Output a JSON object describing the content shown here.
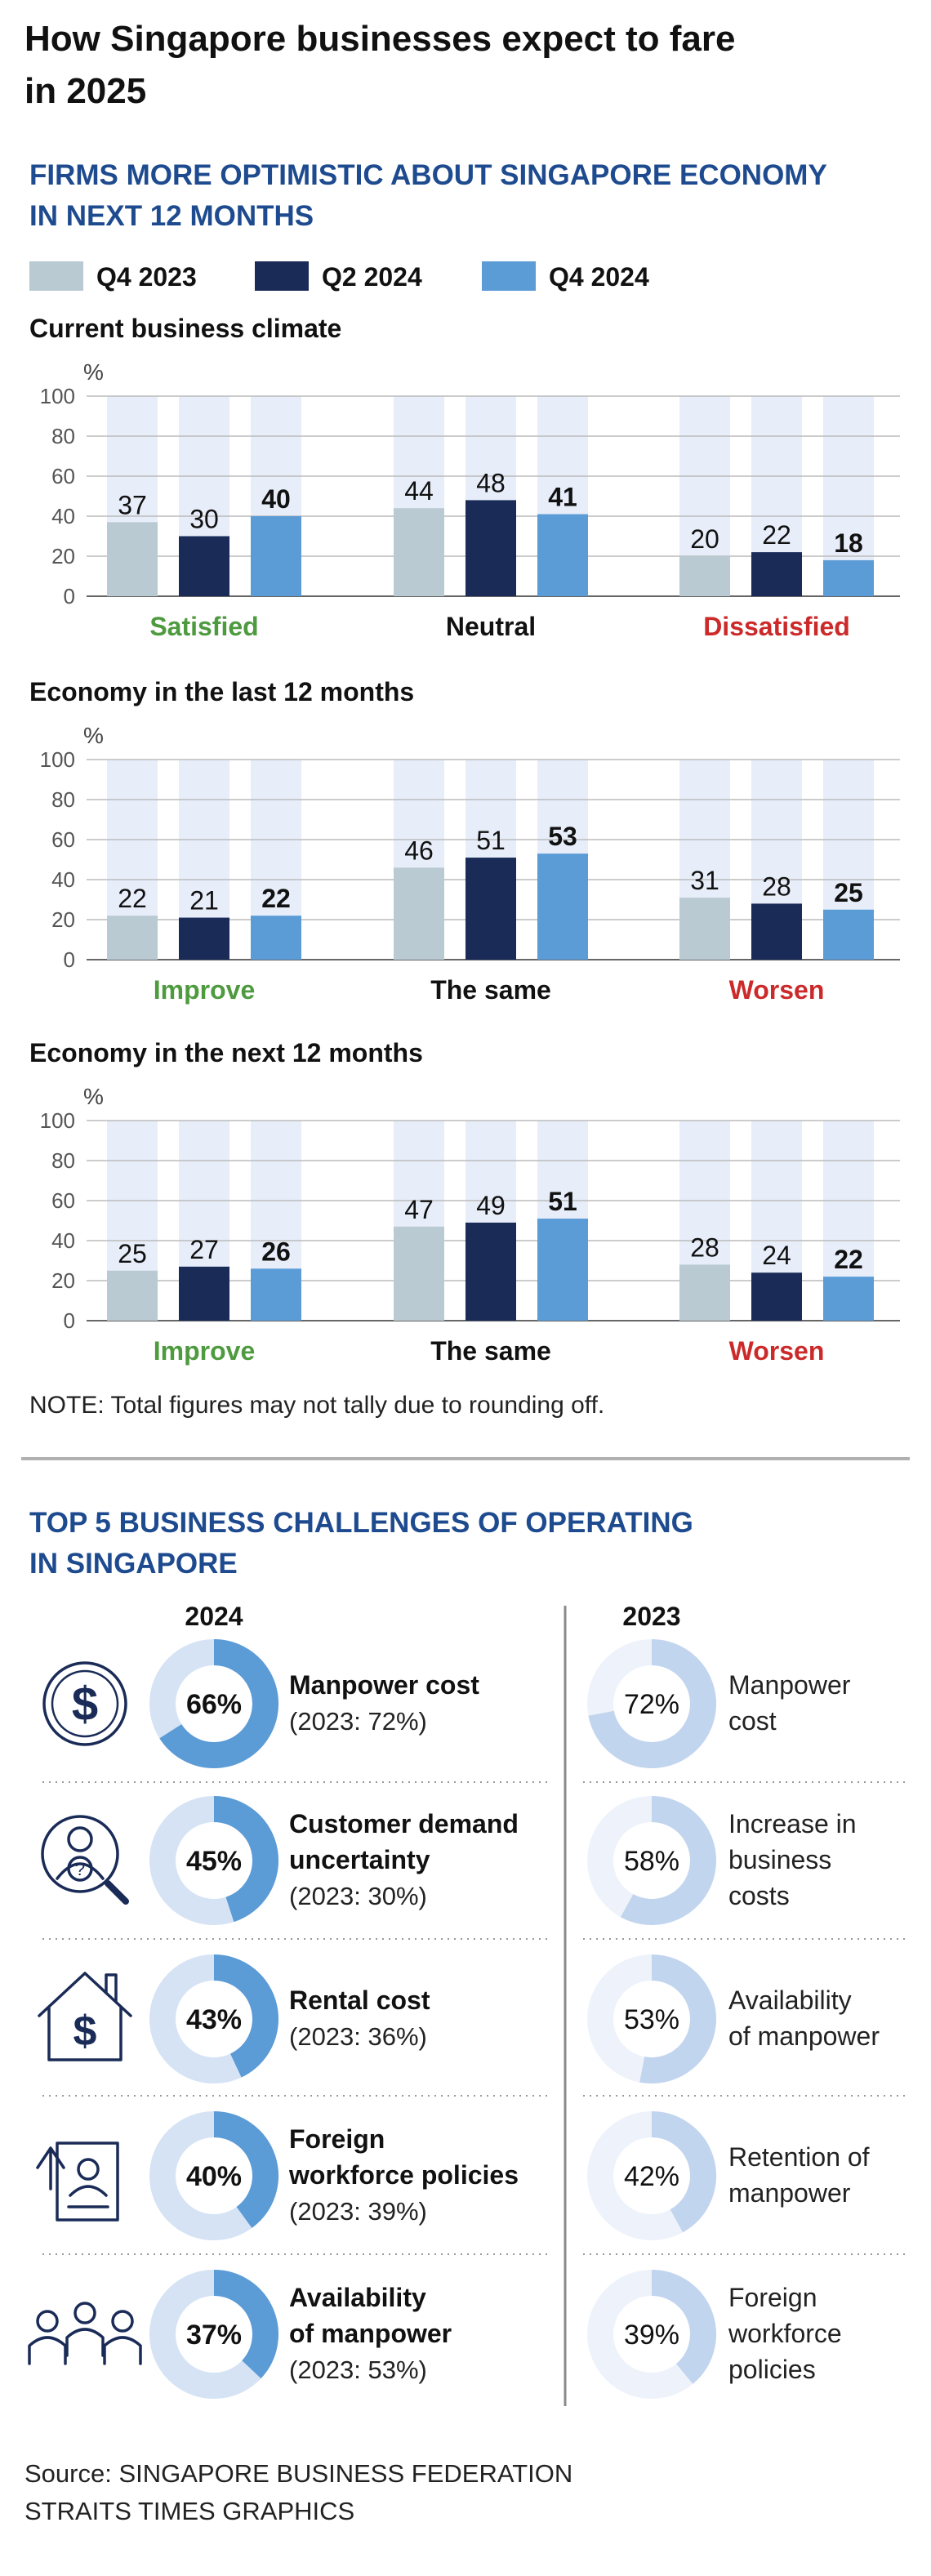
{
  "title": "How Singapore businesses expect to fare in 2025",
  "subtitle": "FIRMS MORE OPTIMISTIC ABOUT SINGAPORE ECONOMY IN NEXT 12 MONTHS",
  "legend": [
    {
      "label": "Q4 2023",
      "color": "#b9cad2"
    },
    {
      "label": "Q2 2024",
      "color": "#1a2b57"
    },
    {
      "label": "Q4 2024",
      "color": "#5b9bd6"
    }
  ],
  "colors": {
    "bg_column": "#e7eefa",
    "grid": "#bbbbbb",
    "axis": "#666666",
    "green": "#4e9a3f",
    "red": "#cc2a2a",
    "navy": "#1e4b8f",
    "donut_2024_fill": "#5b9bd6",
    "donut_2024_track": "#d5e3f5",
    "donut_2023_fill": "#c2d5ee",
    "donut_2023_track": "#eef3fb"
  },
  "chart_data": [
    {
      "type": "bar",
      "title": "Current business climate",
      "ylabel": "%",
      "ylim": [
        0,
        100
      ],
      "yticks": [
        "0",
        "20",
        "40",
        "60",
        "80",
        "100"
      ],
      "categories": [
        "Satisfied",
        "Neutral",
        "Dissatisfied"
      ],
      "category_colors": [
        "green",
        "black",
        "red"
      ],
      "series": [
        {
          "name": "Q4 2023",
          "values": [
            37,
            44,
            20
          ]
        },
        {
          "name": "Q2 2024",
          "values": [
            30,
            48,
            22
          ]
        },
        {
          "name": "Q4 2024",
          "values": [
            40,
            41,
            18
          ]
        }
      ]
    },
    {
      "type": "bar",
      "title": "Economy in the last 12 months",
      "ylabel": "%",
      "ylim": [
        0,
        100
      ],
      "yticks": [
        "0",
        "20",
        "40",
        "60",
        "80",
        "100"
      ],
      "categories": [
        "Improve",
        "The same",
        "Worsen"
      ],
      "category_colors": [
        "green",
        "black",
        "red"
      ],
      "series": [
        {
          "name": "Q4 2023",
          "values": [
            22,
            46,
            31
          ]
        },
        {
          "name": "Q2 2024",
          "values": [
            21,
            51,
            28
          ]
        },
        {
          "name": "Q4 2024",
          "values": [
            22,
            53,
            25
          ]
        }
      ]
    },
    {
      "type": "bar",
      "title": "Economy in the next 12 months",
      "ylabel": "%",
      "ylim": [
        0,
        100
      ],
      "yticks": [
        "0",
        "20",
        "40",
        "60",
        "80",
        "100"
      ],
      "categories": [
        "Improve",
        "The same",
        "Worsen"
      ],
      "category_colors": [
        "green",
        "black",
        "red"
      ],
      "series": [
        {
          "name": "Q4 2023",
          "values": [
            25,
            47,
            28
          ]
        },
        {
          "name": "Q2 2024",
          "values": [
            27,
            49,
            24
          ]
        },
        {
          "name": "Q4 2024",
          "values": [
            26,
            51,
            22
          ]
        }
      ]
    }
  ],
  "note": "NOTE: Total figures may not tally due to rounding off.",
  "challenges": {
    "title": "TOP 5 BUSINESS CHALLENGES OF OPERATING IN SINGAPORE",
    "col_2024": "2024",
    "col_2023": "2023",
    "items_2024": [
      {
        "icon": "dollar-circle-icon",
        "value": 66,
        "label": "66%",
        "name_lines": [
          "Manpower cost"
        ],
        "prior": "(2023: 72%)"
      },
      {
        "icon": "person-search-icon",
        "value": 45,
        "label": "45%",
        "name_lines": [
          "Customer demand",
          "uncertainty"
        ],
        "prior": "(2023: 30%)"
      },
      {
        "icon": "house-dollar-icon",
        "value": 43,
        "label": "43%",
        "name_lines": [
          "Rental cost"
        ],
        "prior": "(2023: 36%)"
      },
      {
        "icon": "document-policy-icon",
        "value": 40,
        "label": "40%",
        "name_lines": [
          "Foreign",
          "workforce policies"
        ],
        "prior": "(2023: 39%)"
      },
      {
        "icon": "people-group-icon",
        "value": 37,
        "label": "37%",
        "name_lines": [
          "Availability",
          "of manpower"
        ],
        "prior": "(2023: 53%)"
      }
    ],
    "items_2023": [
      {
        "value": 72,
        "label": "72%",
        "name_lines": [
          "Manpower",
          "cost"
        ]
      },
      {
        "value": 58,
        "label": "58%",
        "name_lines": [
          "Increase in",
          "business",
          "costs"
        ]
      },
      {
        "value": 53,
        "label": "53%",
        "name_lines": [
          "Availability",
          "of manpower"
        ]
      },
      {
        "value": 42,
        "label": "42%",
        "name_lines": [
          "Retention of",
          "manpower"
        ]
      },
      {
        "value": 39,
        "label": "39%",
        "name_lines": [
          "Foreign",
          "workforce",
          "policies"
        ]
      }
    ]
  },
  "source_lines": [
    "Source: SINGAPORE BUSINESS FEDERATION",
    "STRAITS TIMES GRAPHICS"
  ]
}
